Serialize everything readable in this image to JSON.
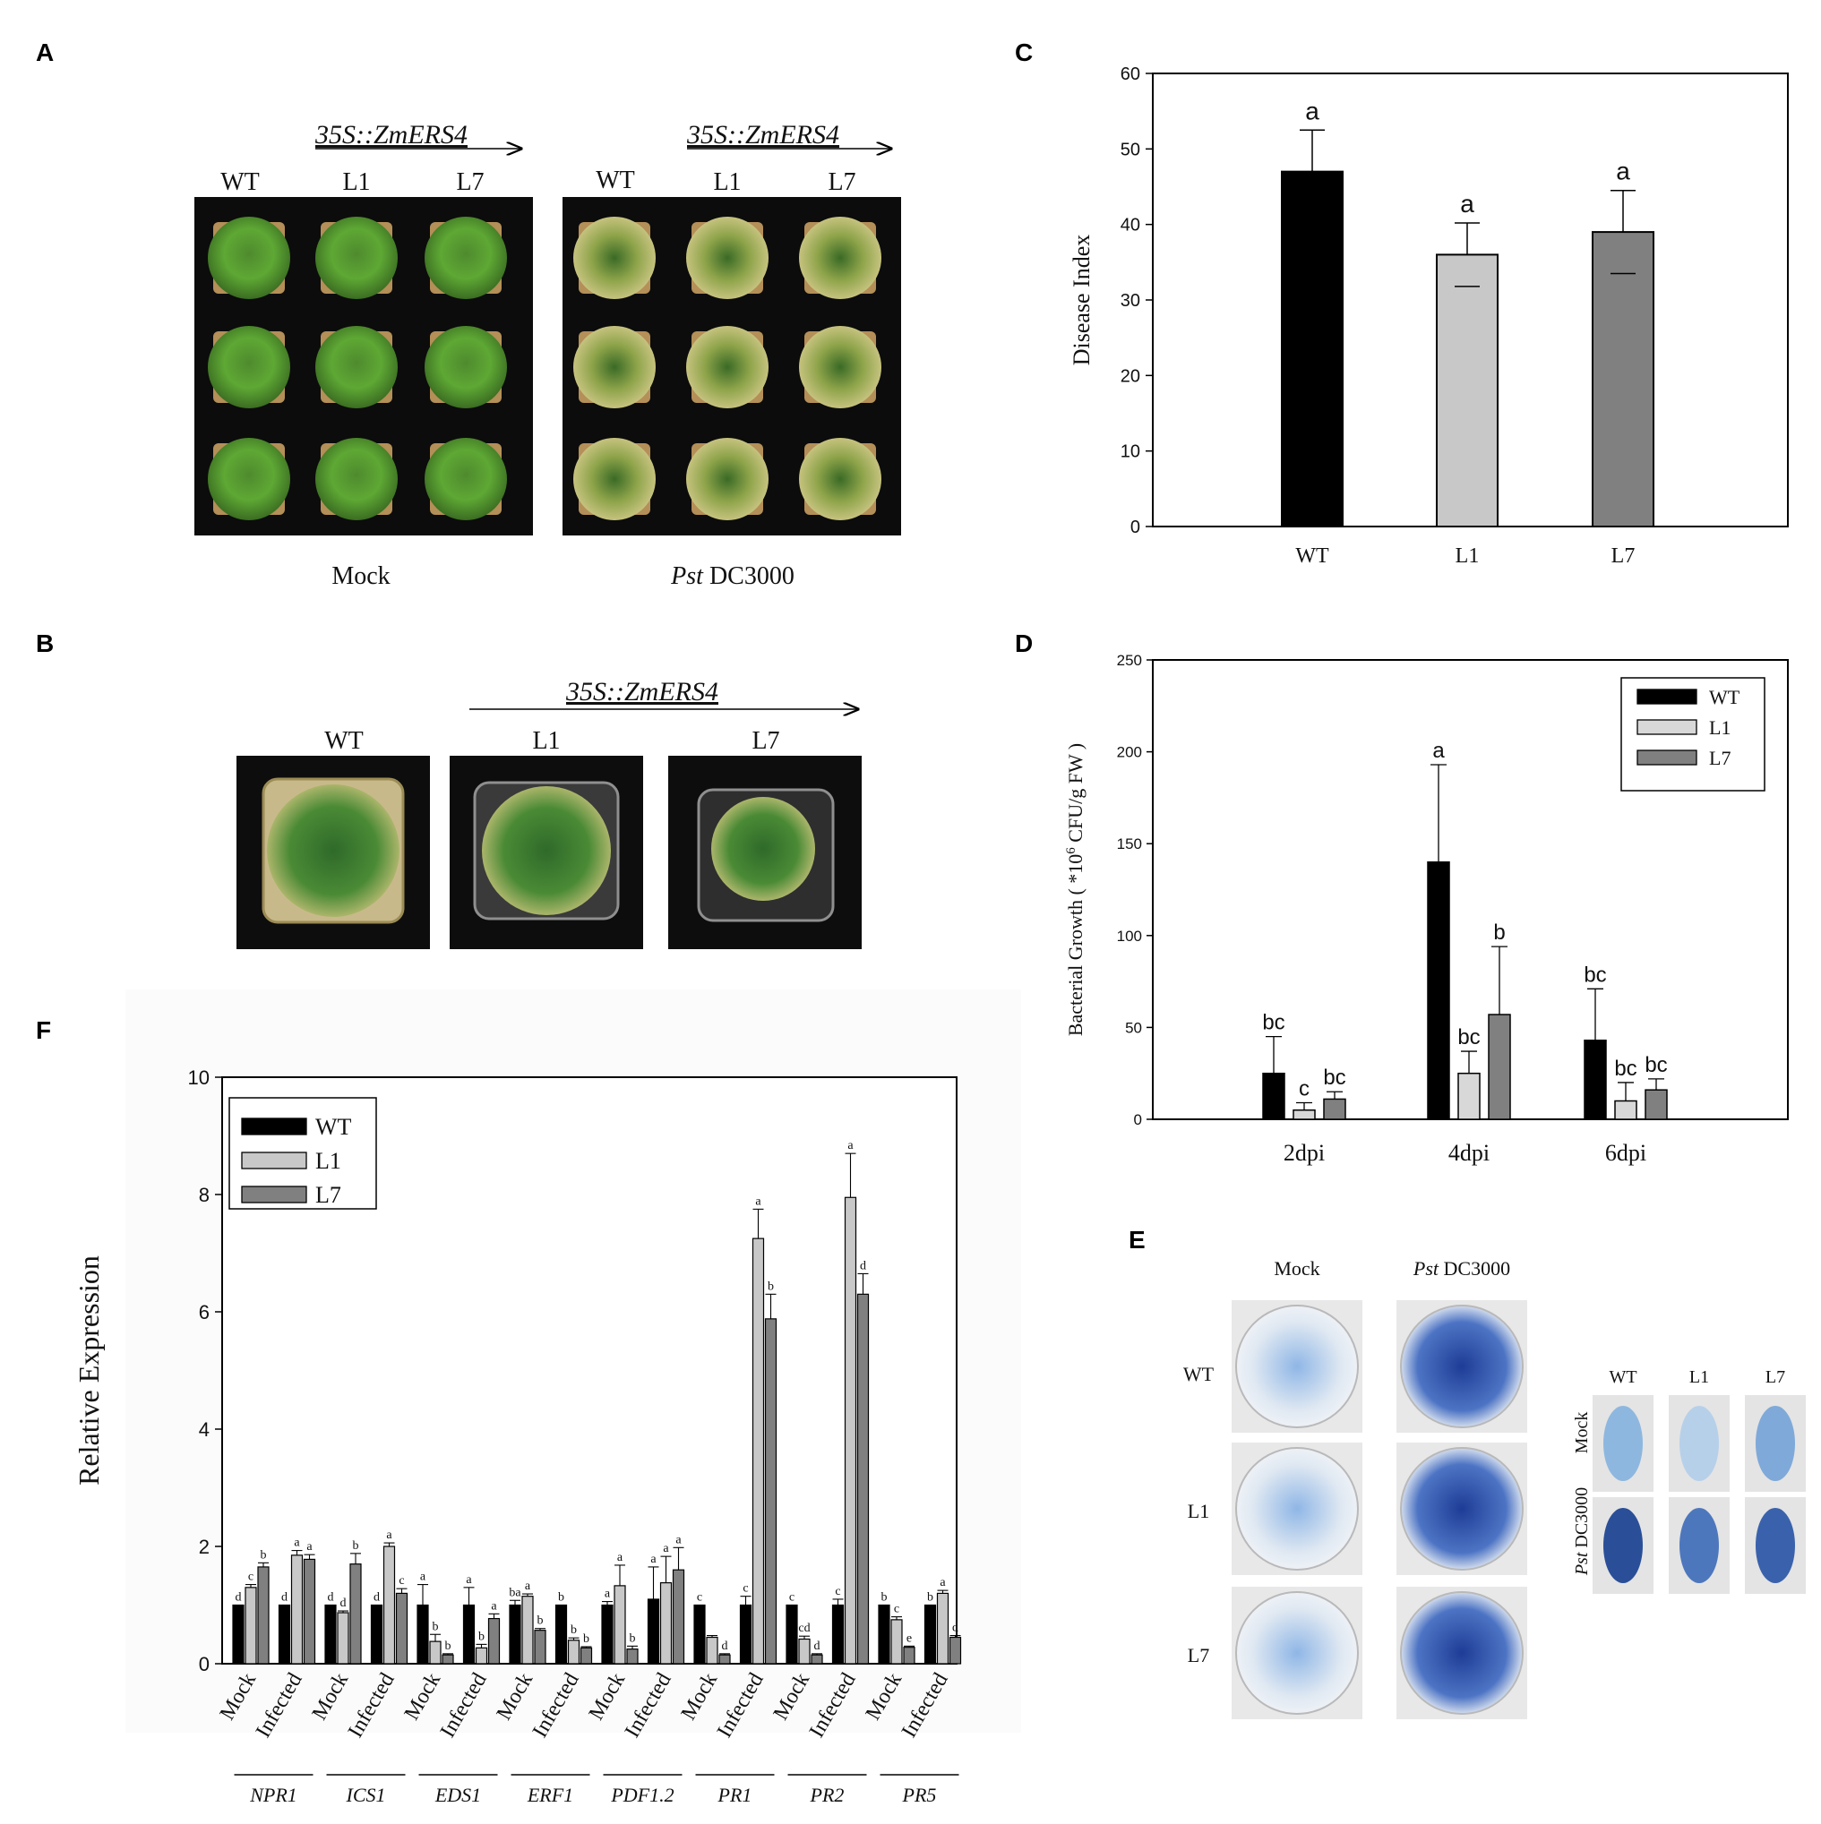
{
  "panels": {
    "A": {
      "letter": "A",
      "construct_left": "35S::ZmERS4",
      "construct_right": "35S::ZmERS4",
      "cols_left": [
        "WT",
        "L1",
        "L7"
      ],
      "cols_right": [
        "WT",
        "L1",
        "L7"
      ],
      "caption_left": "Mock",
      "caption_right_italic": "Pst",
      "caption_right_rest": " DC3000"
    },
    "B": {
      "letter": "B",
      "construct": "35S::ZmERS4",
      "labels": [
        "WT",
        "L1",
        "L7"
      ]
    },
    "E": {
      "letter": "E",
      "col_mock": "Mock",
      "col_pst_italic": "Pst",
      "col_pst_rest": " DC3000",
      "rows": [
        "WT",
        "L1",
        "L7"
      ],
      "leaf_cols": [
        "WT",
        "L1",
        "L7"
      ],
      "leaf_row_mock": "Mock",
      "leaf_row_pst_italic": "Pst",
      "leaf_row_pst_rest": " DC3000"
    },
    "C": {
      "letter": "C"
    },
    "D": {
      "letter": "D"
    },
    "F": {
      "letter": "F"
    }
  },
  "chart_data": [
    {
      "panel": "C",
      "type": "bar",
      "categories": [
        "WT",
        "L1",
        "L7"
      ],
      "values": [
        47,
        36,
        39
      ],
      "errors": [
        5.5,
        4.2,
        5.5
      ],
      "letters": [
        "a",
        "a",
        "a"
      ],
      "colors": [
        "#000000",
        "#c8c8c8",
        "#808080"
      ],
      "ylabel": "Disease Index",
      "ylim": [
        0,
        60
      ],
      "yticks": [
        0,
        10,
        20,
        30,
        40,
        50,
        60
      ]
    },
    {
      "panel": "D",
      "type": "bar",
      "categories": [
        "2dpi",
        "4dpi",
        "6dpi"
      ],
      "series": [
        {
          "name": "WT",
          "color": "#000000",
          "values": [
            25,
            140,
            43
          ],
          "errors": [
            20,
            53,
            28
          ],
          "letters": [
            "bc",
            "a",
            "bc"
          ]
        },
        {
          "name": "L1",
          "color": "#d8d8d8",
          "values": [
            5,
            25,
            10
          ],
          "errors": [
            4,
            12,
            10
          ],
          "letters": [
            "c",
            "bc",
            "bc"
          ]
        },
        {
          "name": "L7",
          "color": "#808080",
          "values": [
            11,
            57,
            16
          ],
          "errors": [
            4,
            37,
            6
          ],
          "letters": [
            "bc",
            "b",
            "bc"
          ]
        }
      ],
      "ylabel_pre": "Bacterial Growth ( *10",
      "ylabel_sup": "6",
      "ylabel_post": " CFU/g FW )",
      "ylim": [
        0,
        250
      ],
      "yticks": [
        0,
        50,
        100,
        150,
        200,
        250
      ],
      "legend": "top-right"
    },
    {
      "panel": "F",
      "type": "bar",
      "genes": [
        "NPR1",
        "ICS1",
        "EDS1",
        "ERF1",
        "PDF1.2",
        "PR1",
        "PR2",
        "PR5"
      ],
      "conditions": [
        "Mock",
        "Infected"
      ],
      "series": [
        {
          "name": "WT",
          "color": "#000000",
          "values": [
            1,
            1,
            1,
            1,
            1,
            1,
            1,
            1,
            1,
            1.1,
            1,
            1,
            1,
            1,
            1,
            1
          ],
          "errors": [
            0,
            0,
            0,
            0,
            0.35,
            0.3,
            0.08,
            0,
            0.06,
            0.55,
            0,
            0.15,
            0,
            0.1,
            0,
            0
          ],
          "letters": [
            "d",
            "d",
            "d",
            "d",
            "a",
            "a",
            "ba",
            "b",
            "a",
            "a",
            "c",
            "c",
            "c",
            "c",
            "b",
            "b"
          ]
        },
        {
          "name": "L1",
          "color": "#c8c8c8",
          "values": [
            1.3,
            1.85,
            0.87,
            2.0,
            0.38,
            0.27,
            1.15,
            0.4,
            1.33,
            1.38,
            0.45,
            7.25,
            0.42,
            7.95,
            0.75,
            1.2
          ],
          "errors": [
            0.05,
            0.08,
            0.03,
            0.06,
            0.12,
            0.06,
            0.04,
            0.04,
            0.35,
            0.45,
            0.03,
            0.5,
            0.05,
            0.75,
            0.05,
            0.05
          ],
          "letters": [
            "c",
            "a",
            "d",
            "a",
            "b",
            "b",
            "a",
            "b",
            "a",
            "a",
            "",
            "a",
            "cd",
            "a",
            "c",
            "a"
          ]
        },
        {
          "name": "L7",
          "color": "#808080",
          "values": [
            1.65,
            1.78,
            1.7,
            1.2,
            0.15,
            0.77,
            0.57,
            0.27,
            0.25,
            1.6,
            0.15,
            5.88,
            0.15,
            6.3,
            0.28,
            0.45
          ],
          "errors": [
            0.07,
            0.08,
            0.18,
            0.08,
            0.02,
            0.08,
            0.03,
            0.02,
            0.05,
            0.38,
            0.02,
            0.42,
            0.02,
            0.35,
            0.02,
            0.03
          ],
          "letters": [
            "b",
            "a",
            "b",
            "c",
            "b",
            "a",
            "b",
            "b",
            "b",
            "a",
            "d",
            "b",
            "d",
            "d",
            "e",
            "d"
          ]
        }
      ],
      "ylabel": "Relative Expression",
      "ylim": [
        0,
        10
      ],
      "yticks": [
        0,
        2,
        4,
        6,
        8,
        10
      ],
      "legend": "top-left"
    }
  ]
}
